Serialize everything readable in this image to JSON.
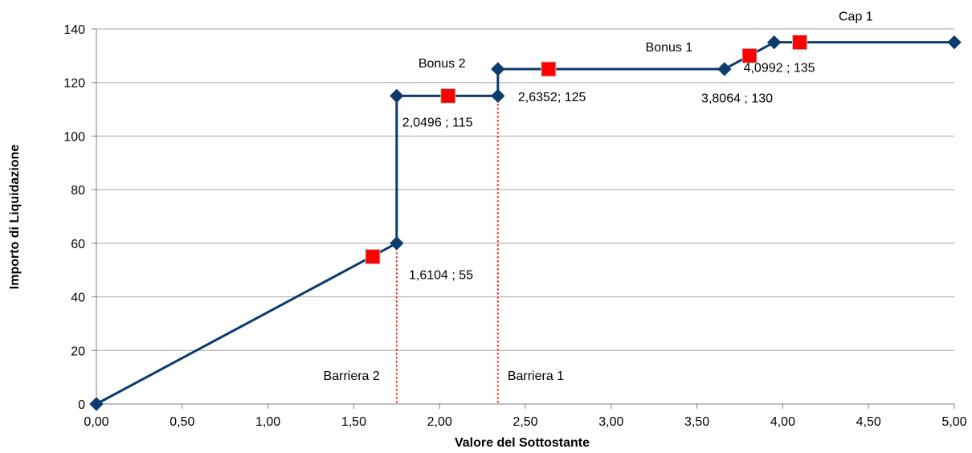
{
  "chart_data": {
    "type": "line",
    "xlabel": "Valore del Sottostante",
    "ylabel": "Importo di Liquidazione",
    "xlim": [
      0,
      5
    ],
    "ylim": [
      0,
      140
    ],
    "xticks": [
      0,
      0.5,
      1,
      1.5,
      2,
      2.5,
      3,
      3.5,
      4,
      4.5,
      5
    ],
    "xtick_labels": [
      "0,00",
      "0,50",
      "1,00",
      "1,50",
      "2,00",
      "2,50",
      "3,00",
      "3,50",
      "4,00",
      "4,50",
      "5,00"
    ],
    "yticks": [
      0,
      20,
      40,
      60,
      80,
      100,
      120,
      140
    ],
    "ytick_labels": [
      "0",
      "20",
      "40",
      "60",
      "80",
      "100",
      "120",
      "140"
    ],
    "grid": "horizontal",
    "series": [
      {
        "marker": "diamond",
        "color": "#0d3b6e",
        "points": [
          [
            0,
            0
          ],
          [
            1.75,
            60
          ],
          [
            1.75,
            115
          ],
          [
            2.34,
            115
          ],
          [
            2.34,
            125
          ],
          [
            3.66,
            125
          ],
          [
            3.95,
            135
          ],
          [
            5,
            135
          ]
        ]
      },
      {
        "marker": "square",
        "color": "#ff0000",
        "points": [
          [
            1.6104,
            55
          ],
          [
            2.0496,
            115
          ],
          [
            2.6352,
            125
          ],
          [
            3.8064,
            130
          ],
          [
            4.0992,
            135
          ]
        ]
      }
    ],
    "barriers": [
      {
        "x": 1.75,
        "label": "Barriera 2",
        "color": "#ff0000"
      },
      {
        "x": 2.34,
        "label": "Barriera 1",
        "color": "#ff0000"
      }
    ],
    "annotations": [
      {
        "text": "1,6104 ; 55",
        "x": 1.6104,
        "y": 55
      },
      {
        "text": "2,0496 ; 115",
        "x": 2.0496,
        "y": 115
      },
      {
        "text": "2,6352; 125",
        "x": 2.6352,
        "y": 125
      },
      {
        "text": "3,8064 ; 130",
        "x": 3.8064,
        "y": 130
      },
      {
        "text": "4,0992 ; 135",
        "x": 4.0992,
        "y": 135
      },
      {
        "text": "Bonus 2",
        "x": 2.34,
        "y": 125
      },
      {
        "text": "Bonus 1",
        "x": 3.2,
        "y": 125
      },
      {
        "text": "Cap 1",
        "x": 5,
        "y": 135
      }
    ]
  }
}
